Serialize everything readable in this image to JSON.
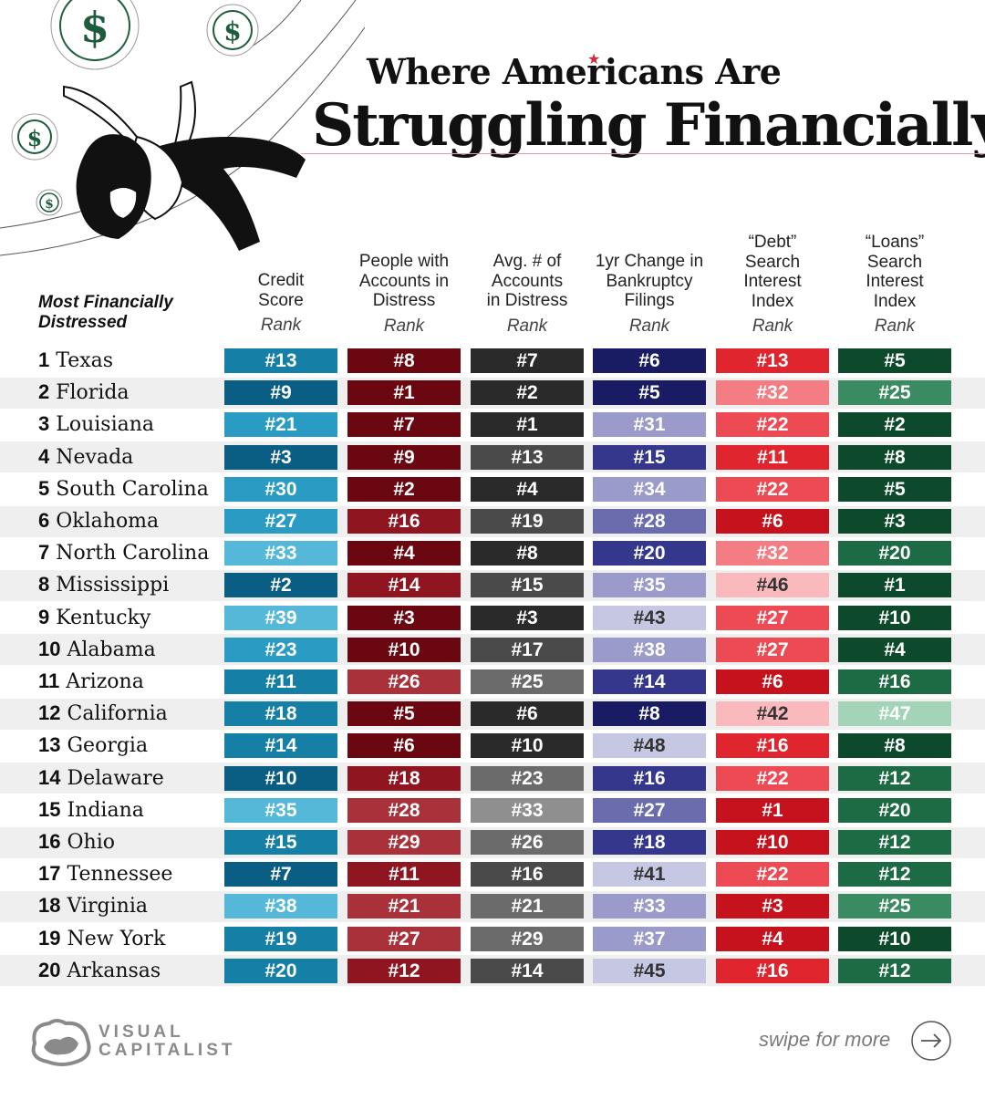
{
  "title": {
    "line1": "Where Americans Are",
    "line2": "Struggling Financially"
  },
  "row_header": {
    "line1": "Most Financially",
    "line2": "Distressed"
  },
  "rank_word": "Rank",
  "footer": {
    "logo_line1": "VISUAL",
    "logo_line2": "CAPITALIST",
    "swipe": "swipe for more"
  },
  "colors": {
    "cyan": "#2ea3c8",
    "maroon": "#9a1622",
    "gray": "#5c5c5c",
    "navy": "#2c2e78",
    "red": "#e0242e",
    "green": "#1d6b44"
  },
  "chart_data": {
    "type": "table",
    "columns": [
      {
        "key": "credit",
        "head": [
          "Credit",
          "Score"
        ]
      },
      {
        "key": "people",
        "head": [
          "People with",
          "Accounts in",
          "Distress"
        ]
      },
      {
        "key": "avg",
        "head": [
          "Avg. # of",
          "Accounts",
          "in Distress"
        ]
      },
      {
        "key": "bankruptcy",
        "head": [
          "1yr Change in",
          "Bankruptcy",
          "Filings"
        ]
      },
      {
        "key": "debt",
        "head": [
          "“Debt”",
          "Search",
          "Interest",
          "Index"
        ]
      },
      {
        "key": "loans",
        "head": [
          "“Loans”",
          "Search",
          "Interest",
          "Index"
        ]
      }
    ],
    "rows": [
      {
        "rank": "1",
        "state": "Texas",
        "values": [
          13,
          8,
          7,
          6,
          13,
          5
        ]
      },
      {
        "rank": "2",
        "state": "Florida",
        "values": [
          9,
          1,
          2,
          5,
          32,
          25
        ]
      },
      {
        "rank": "3",
        "state": "Louisiana",
        "values": [
          21,
          7,
          1,
          31,
          22,
          2
        ]
      },
      {
        "rank": "4",
        "state": "Nevada",
        "values": [
          3,
          9,
          13,
          15,
          11,
          8
        ]
      },
      {
        "rank": "5",
        "state": "South Carolina",
        "values": [
          30,
          2,
          4,
          34,
          22,
          5
        ]
      },
      {
        "rank": "6",
        "state": "Oklahoma",
        "values": [
          27,
          16,
          19,
          28,
          6,
          3
        ]
      },
      {
        "rank": "7",
        "state": "North Carolina",
        "values": [
          33,
          4,
          8,
          20,
          32,
          20
        ]
      },
      {
        "rank": "8",
        "state": "Mississippi",
        "values": [
          2,
          14,
          15,
          35,
          46,
          1
        ]
      },
      {
        "rank": "9",
        "state": "Kentucky",
        "values": [
          39,
          3,
          3,
          43,
          27,
          10
        ]
      },
      {
        "rank": "10",
        "state": "Alabama",
        "values": [
          23,
          10,
          17,
          38,
          27,
          4
        ]
      },
      {
        "rank": "11",
        "state": "Arizona",
        "values": [
          11,
          26,
          25,
          14,
          6,
          16
        ]
      },
      {
        "rank": "12",
        "state": "California",
        "values": [
          18,
          5,
          6,
          8,
          42,
          47
        ]
      },
      {
        "rank": "13",
        "state": "Georgia",
        "values": [
          14,
          6,
          10,
          48,
          16,
          8
        ]
      },
      {
        "rank": "14",
        "state": "Delaware",
        "values": [
          10,
          18,
          23,
          16,
          22,
          12
        ]
      },
      {
        "rank": "15",
        "state": "Indiana",
        "values": [
          35,
          28,
          33,
          27,
          1,
          20
        ]
      },
      {
        "rank": "16",
        "state": "Ohio",
        "values": [
          15,
          29,
          26,
          18,
          10,
          12
        ]
      },
      {
        "rank": "17",
        "state": "Tennessee",
        "values": [
          7,
          11,
          16,
          41,
          22,
          12
        ]
      },
      {
        "rank": "18",
        "state": "Virginia",
        "values": [
          38,
          21,
          21,
          33,
          3,
          25
        ]
      },
      {
        "rank": "19",
        "state": "New York",
        "values": [
          19,
          27,
          29,
          37,
          4,
          10
        ]
      },
      {
        "rank": "20",
        "state": "Arkansas",
        "values": [
          20,
          12,
          14,
          45,
          16,
          12
        ]
      }
    ]
  }
}
